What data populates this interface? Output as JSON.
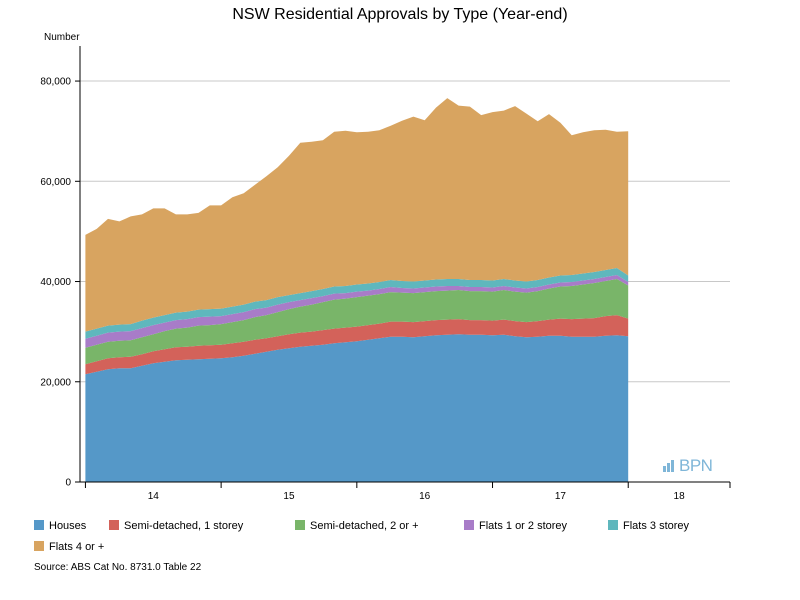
{
  "chart_data": {
    "type": "area",
    "stacked": true,
    "title": "NSW Residential Approvals by Type (Year-end)",
    "ylabel": "Number",
    "xlabel": "",
    "ylim": [
      0,
      85000
    ],
    "yticks": [
      0,
      20000,
      40000,
      60000,
      80000
    ],
    "ytick_labels": [
      "0",
      "20,000",
      "40,000",
      "60,000",
      "80,000"
    ],
    "grid": true,
    "x_start": 2013.5,
    "x_step": 0.08333,
    "xlim": [
      2013.46,
      2018.25
    ],
    "xticks": [
      2014,
      2015,
      2016,
      2017,
      2018
    ],
    "xtick_labels": [
      "14",
      "15",
      "16",
      "17",
      "18"
    ],
    "series": [
      {
        "name": "Houses",
        "color": "#5598c8",
        "values": [
          21500,
          22000,
          22500,
          22700,
          22700,
          23200,
          23700,
          24000,
          24300,
          24400,
          24500,
          24600,
          24700,
          24900,
          25200,
          25600,
          26000,
          26400,
          26700,
          27000,
          27200,
          27400,
          27700,
          27900,
          28100,
          28400,
          28700,
          29000,
          29000,
          28900,
          29100,
          29300,
          29400,
          29500,
          29400,
          29400,
          29300,
          29400,
          29100,
          28900,
          29000,
          29200,
          29200,
          29000,
          29000,
          29000,
          29200,
          29300,
          29100
        ]
      },
      {
        "name": "Semi-detached, 1 storey",
        "color": "#d3625a",
        "values": [
          2000,
          2100,
          2200,
          2200,
          2300,
          2300,
          2400,
          2500,
          2600,
          2600,
          2700,
          2700,
          2700,
          2800,
          2800,
          2800,
          2700,
          2700,
          2800,
          2800,
          2800,
          2900,
          2900,
          2900,
          2900,
          2900,
          2900,
          3000,
          3000,
          3000,
          3000,
          3000,
          3000,
          3000,
          2900,
          2900,
          2900,
          3000,
          3000,
          3000,
          3100,
          3200,
          3400,
          3500,
          3600,
          3700,
          3900,
          4000,
          3500
        ]
      },
      {
        "name": "Semi-detached, 2 or +",
        "color": "#79b569",
        "values": [
          3300,
          3300,
          3300,
          3300,
          3300,
          3400,
          3400,
          3600,
          3700,
          3800,
          4000,
          4000,
          4100,
          4200,
          4300,
          4500,
          4600,
          4800,
          5000,
          5200,
          5400,
          5600,
          5800,
          5800,
          5900,
          5900,
          5900,
          5900,
          5800,
          5800,
          5800,
          5800,
          5800,
          5800,
          5800,
          5800,
          5800,
          5900,
          5900,
          5900,
          6000,
          6200,
          6400,
          6600,
          6800,
          7000,
          7000,
          7200,
          6600
        ]
      },
      {
        "name": "Flats 1 or 2 storey",
        "color": "#a87cc8",
        "values": [
          1800,
          1800,
          1800,
          1800,
          1800,
          1800,
          1800,
          1700,
          1700,
          1700,
          1700,
          1700,
          1600,
          1600,
          1600,
          1600,
          1500,
          1500,
          1400,
          1300,
          1300,
          1200,
          1200,
          1100,
          1100,
          1000,
          1000,
          1000,
          900,
          900,
          900,
          900,
          900,
          800,
          800,
          800,
          800,
          800,
          800,
          800,
          800,
          800,
          800,
          800,
          800,
          800,
          800,
          800,
          700
        ]
      },
      {
        "name": "Flats 3 storey",
        "color": "#5fb7bd",
        "values": [
          1400,
          1400,
          1400,
          1400,
          1400,
          1500,
          1500,
          1500,
          1500,
          1500,
          1500,
          1500,
          1500,
          1500,
          1500,
          1500,
          1500,
          1500,
          1400,
          1400,
          1400,
          1400,
          1400,
          1400,
          1400,
          1400,
          1400,
          1400,
          1400,
          1400,
          1400,
          1400,
          1400,
          1400,
          1400,
          1400,
          1400,
          1400,
          1400,
          1400,
          1400,
          1400,
          1400,
          1400,
          1400,
          1400,
          1400,
          1400,
          1300
        ]
      },
      {
        "name": "Flats 4 or +",
        "color": "#d8a460",
        "values": [
          19300,
          19900,
          21300,
          20600,
          21500,
          21200,
          21800,
          21300,
          19600,
          19400,
          19300,
          20700,
          20600,
          21800,
          22200,
          23300,
          24700,
          25900,
          27800,
          30000,
          29800,
          29700,
          30900,
          31000,
          30400,
          30300,
          30300,
          30800,
          32000,
          32900,
          32000,
          34300,
          36100,
          34600,
          34600,
          32900,
          33600,
          33600,
          34800,
          33500,
          31700,
          32600,
          30500,
          27900,
          28200,
          28300,
          28000,
          27200,
          28800
        ]
      }
    ]
  },
  "source": "Source: ABS Cat No. 8731.0 Table 22",
  "watermark": "BPN"
}
